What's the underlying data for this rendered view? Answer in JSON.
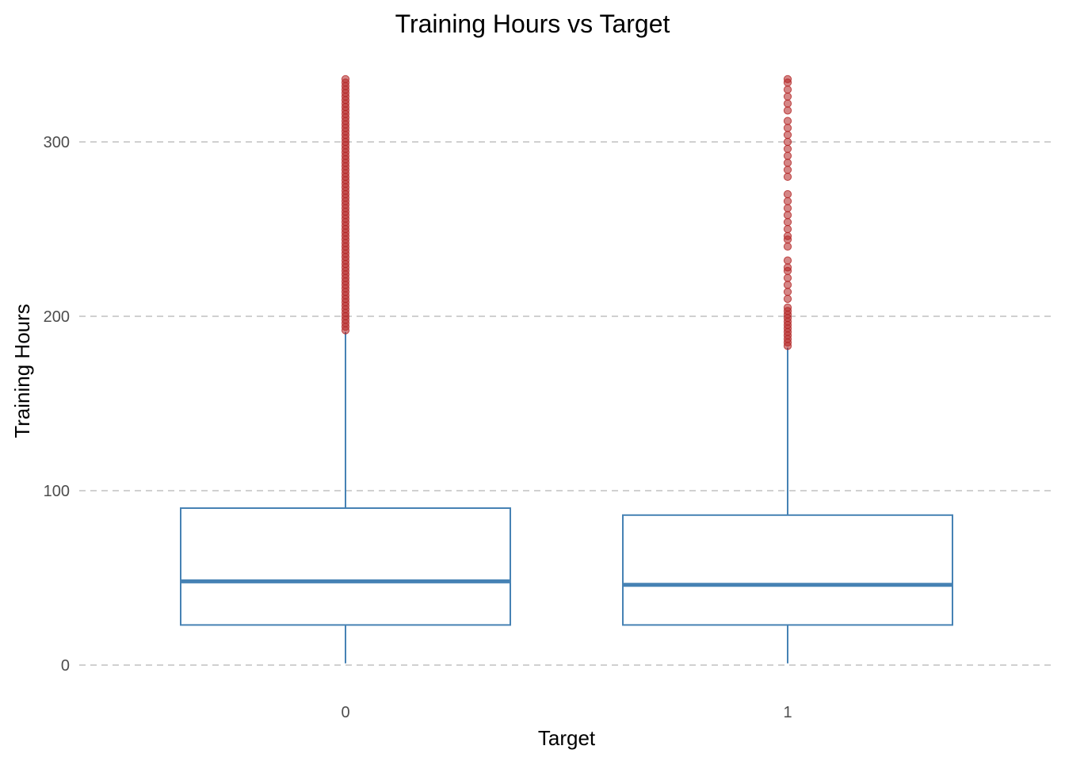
{
  "chart_data": {
    "type": "boxplot",
    "title": "Training Hours vs Target",
    "xlabel": "Target",
    "ylabel": "Training Hours",
    "categories": [
      "0",
      "1"
    ],
    "ylim": [
      -12,
      345
    ],
    "yticks": [
      0,
      100,
      200,
      300
    ],
    "grid": "horizontal dashed",
    "legend": "none",
    "colors": {
      "box": "#4682B4",
      "outlier": "#B22222",
      "grid": "#B3B3B3",
      "tick_text": "#4D4D4D"
    },
    "boxes": [
      {
        "category": "0",
        "min": 1,
        "q1": 23,
        "median": 48,
        "q3": 90,
        "whisker_high": 191,
        "outliers": [
          192,
          194,
          196,
          198,
          200,
          202,
          204,
          206,
          208,
          210,
          212,
          214,
          216,
          218,
          220,
          222,
          224,
          226,
          228,
          230,
          232,
          234,
          236,
          238,
          240,
          242,
          244,
          246,
          248,
          250,
          252,
          254,
          256,
          258,
          260,
          262,
          264,
          266,
          268,
          270,
          272,
          274,
          276,
          278,
          280,
          282,
          284,
          286,
          288,
          290,
          292,
          294,
          296,
          298,
          300,
          302,
          304,
          306,
          308,
          310,
          312,
          314,
          316,
          318,
          320,
          322,
          324,
          326,
          328,
          330,
          332,
          334,
          336
        ]
      },
      {
        "category": "1",
        "min": 1,
        "q1": 23,
        "median": 46,
        "q3": 86,
        "whisker_high": 182,
        "outliers": [
          183,
          185,
          187,
          189,
          191,
          193,
          195,
          197,
          199,
          201,
          203,
          205,
          210,
          214,
          218,
          222,
          226,
          228,
          232,
          240,
          244,
          246,
          250,
          254,
          258,
          262,
          266,
          270,
          280,
          284,
          288,
          292,
          296,
          300,
          304,
          308,
          312,
          318,
          322,
          326,
          330,
          334,
          336
        ]
      }
    ]
  }
}
